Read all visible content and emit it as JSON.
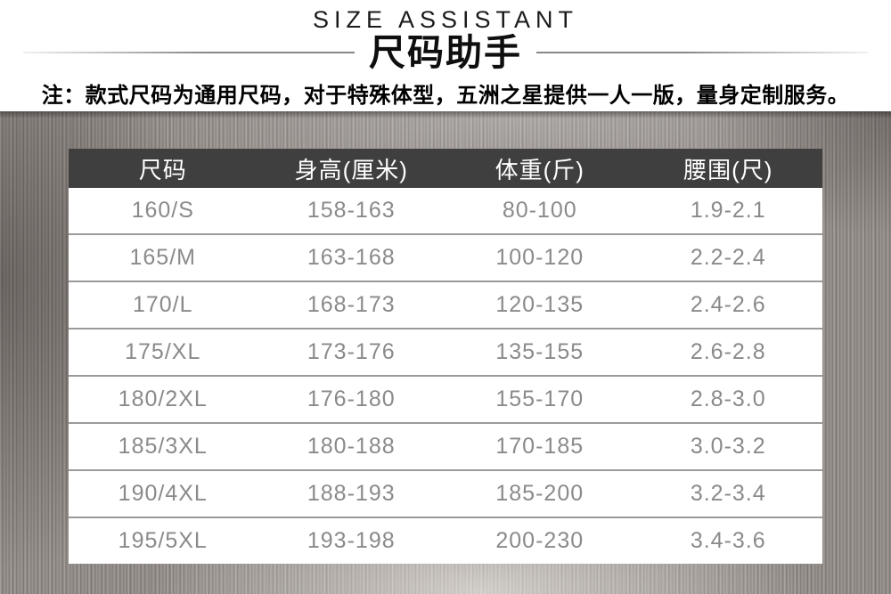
{
  "header": {
    "title_en": "SIZE ASSISTANT",
    "title_zh": "尺码助手",
    "note": "注：款式尺码为通用尺码，对于特殊体型，五洲之星提供一人一版，量身定制服务。"
  },
  "chart_data": {
    "type": "table",
    "title": "尺码助手",
    "subtitle": "SIZE ASSISTANT",
    "note": "注：款式尺码为通用尺码，对于特殊体型，五洲之星提供一人一版，量身定制服务。",
    "columns": [
      "尺码",
      "身高(厘米)",
      "体重(斤)",
      "腰围(尺)"
    ],
    "rows": [
      [
        "160/S",
        "158-163",
        "80-100",
        "1.9-2.1"
      ],
      [
        "165/M",
        "163-168",
        "100-120",
        "2.2-2.4"
      ],
      [
        "170/L",
        "168-173",
        "120-135",
        "2.4-2.6"
      ],
      [
        "175/XL",
        "173-176",
        "135-155",
        "2.6-2.8"
      ],
      [
        "180/2XL",
        "176-180",
        "155-170",
        "2.8-3.0"
      ],
      [
        "185/3XL",
        "180-188",
        "170-185",
        "3.0-3.2"
      ],
      [
        "190/4XL",
        "188-193",
        "185-200",
        "3.2-3.4"
      ],
      [
        "195/5XL",
        "193-198",
        "200-230",
        "3.4-3.6"
      ]
    ]
  },
  "colors": {
    "table_header_bg": "#3f3f3f",
    "table_header_text": "#ffffff",
    "table_body_text": "#8a8a8a",
    "row_divider": "#9a9a9a",
    "title_text": "#1b1b1b",
    "note_text": "#000000",
    "divider_line": "#878787",
    "metal_base": "#948d89"
  }
}
